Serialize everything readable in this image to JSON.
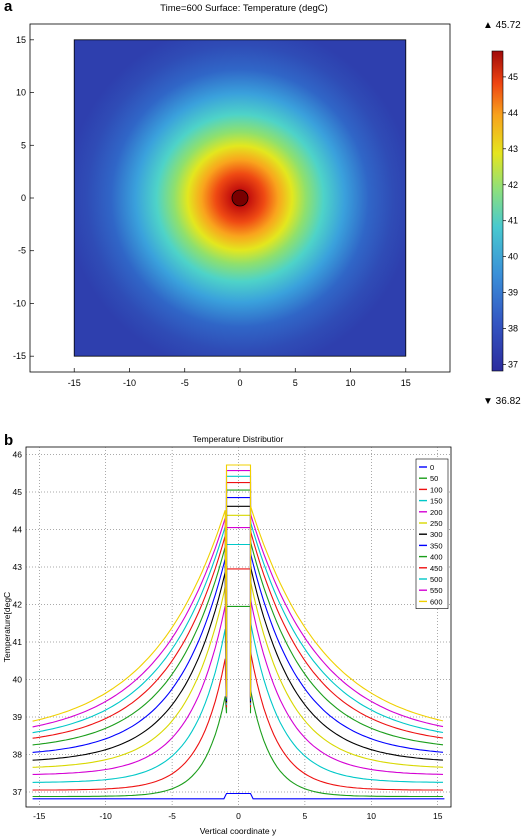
{
  "panel_a": {
    "label": "a",
    "title": "Time=600  Surface: Temperature (degC)",
    "colorbar_max_label": "▲ 45.72",
    "colorbar_min_label": "▼ 36.82"
  },
  "panel_b": {
    "label": "b"
  },
  "chart_data": [
    {
      "type": "heatmap",
      "title": "Time=600  Surface: Temperature (degC)",
      "xlim": [
        -19,
        19
      ],
      "ylim": [
        -16.5,
        16.5
      ],
      "domain_x": [
        -15,
        15
      ],
      "domain_y": [
        -15,
        15
      ],
      "x_ticks": [
        -15,
        -10,
        -5,
        0,
        5,
        10,
        15
      ],
      "y_ticks": [
        -15,
        -10,
        -5,
        0,
        5,
        10,
        15
      ],
      "value_range": [
        36.82,
        45.72
      ],
      "colorbar_ticks": [
        37,
        38,
        39,
        40,
        41,
        42,
        43,
        44,
        45
      ],
      "grid": false
    },
    {
      "type": "line",
      "title": "Temperature Distributior",
      "xlabel": "Vertical coordinate y",
      "ylabel": "Temperature[degC",
      "xlim": [
        -16,
        16
      ],
      "ylim": [
        36.6,
        46.2
      ],
      "x_ticks": [
        -15,
        -10,
        -5,
        0,
        5,
        10,
        15
      ],
      "y_ticks": [
        37,
        38,
        39,
        40,
        41,
        42,
        43,
        44,
        45,
        46
      ],
      "grid": true,
      "legend_position": "top-right",
      "series": [
        {
          "name": "0",
          "color": "#0000ff",
          "peak": 36.82,
          "edge": 36.82
        },
        {
          "name": "50",
          "color": "#1b9e1b",
          "peak": 41.95,
          "edge": 36.88
        },
        {
          "name": "100",
          "color": "#ee1111",
          "peak": 42.95,
          "edge": 37.05
        },
        {
          "name": "150",
          "color": "#00c8c8",
          "peak": 43.6,
          "edge": 37.25
        },
        {
          "name": "200",
          "color": "#d400d4",
          "peak": 44.05,
          "edge": 37.45
        },
        {
          "name": "250",
          "color": "#d8d800",
          "peak": 44.38,
          "edge": 37.62
        },
        {
          "name": "300",
          "color": "#000000",
          "peak": 44.62,
          "edge": 37.78
        },
        {
          "name": "350",
          "color": "#0000ff",
          "peak": 44.85,
          "edge": 37.95
        },
        {
          "name": "400",
          "color": "#1b9e1b",
          "peak": 45.05,
          "edge": 38.1
        },
        {
          "name": "450",
          "color": "#ee1111",
          "peak": 45.25,
          "edge": 38.22
        },
        {
          "name": "500",
          "color": "#00c8c8",
          "peak": 45.42,
          "edge": 38.3
        },
        {
          "name": "550",
          "color": "#d400d4",
          "peak": 45.57,
          "edge": 38.38
        },
        {
          "name": "600",
          "color": "#f0d000",
          "peak": 45.72,
          "edge": 38.45
        }
      ]
    }
  ]
}
